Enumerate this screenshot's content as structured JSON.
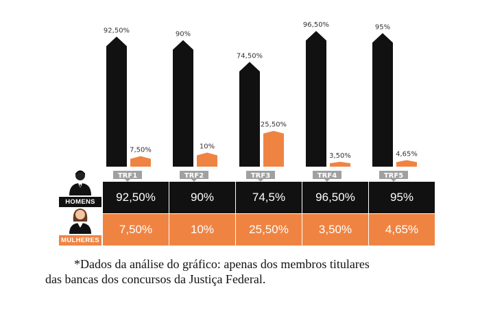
{
  "chart_data": {
    "type": "bar",
    "categories": [
      "TRF1",
      "TRF2",
      "TRF3",
      "TRF4",
      "TRF5"
    ],
    "series": [
      {
        "name": "HOMENS",
        "values": [
          92.5,
          90,
          74.5,
          96.5,
          95
        ],
        "labels": [
          "92,50%",
          "90%",
          "74,50%",
          "96,50%",
          "95%"
        ],
        "color": "#111111"
      },
      {
        "name": "MULHERES",
        "values": [
          7.5,
          10,
          25.5,
          3.5,
          4.65
        ],
        "labels": [
          "7,50%",
          "10%",
          "25,50%",
          "3,50%",
          "4,65%"
        ],
        "color": "#ef8442"
      }
    ],
    "ylim": [
      0,
      100
    ],
    "title": "",
    "xlabel": "",
    "ylabel": ""
  },
  "table": {
    "men_label": "HOMENS",
    "women_label": "MULHERES",
    "men": [
      "92,50%",
      "90%",
      "74,5%",
      "96,50%",
      "95%"
    ],
    "women": [
      "7,50%",
      "10%",
      "25,50%",
      "3,50%",
      "4,65%"
    ]
  },
  "colors": {
    "men": "#111111",
    "women": "#ef8442",
    "tag": "#a0a0a0"
  },
  "footnote": {
    "line1": "*Dados da análise do gráfico: apenas dos membros titulares",
    "line2": "das bancas dos concursos da Justiça Federal."
  }
}
